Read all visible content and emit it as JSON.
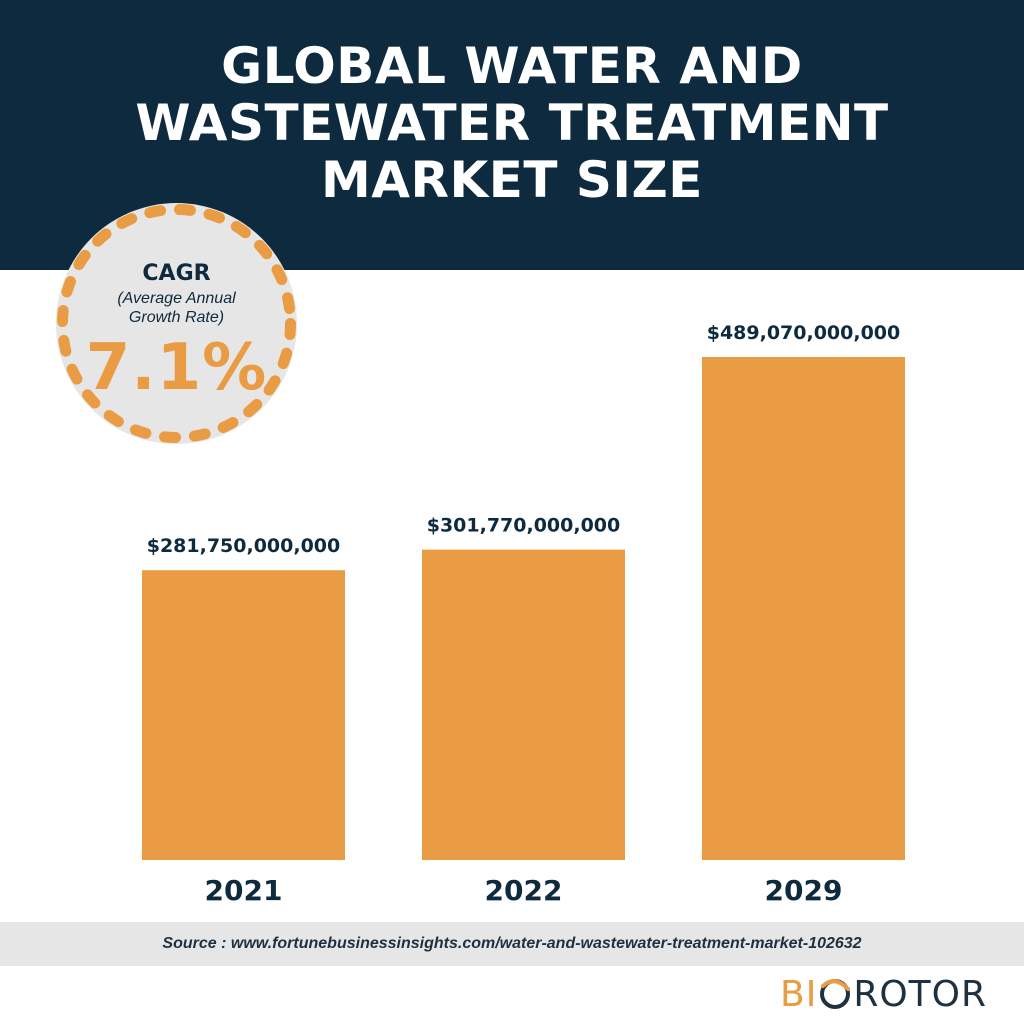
{
  "title": {
    "line1": "GLOBAL WATER AND",
    "line2": "WASTEWATER TREATMENT",
    "line3": "MARKET SIZE"
  },
  "cagr": {
    "label": "CAGR",
    "sub_line1": "(Average Annual",
    "sub_line2": "Growth Rate)",
    "value": "7.1%"
  },
  "chart_data": {
    "type": "bar",
    "title": "GLOBAL WATER AND WASTEWATER TREATMENT MARKET SIZE",
    "categories": [
      "2021",
      "2022",
      "2029"
    ],
    "values": [
      281750000000,
      301770000000,
      489070000000
    ],
    "data_labels": [
      "$281,750,000,000",
      "$301,770,000,000",
      "$489,070,000,000"
    ],
    "xlabel": "",
    "ylabel": "",
    "ylim": [
      0,
      489070000000
    ],
    "grid": false,
    "legend": "none"
  },
  "colors": {
    "navy": "#0e2a3e",
    "bar": "#e99c43",
    "circle": "#e6e6e6"
  },
  "source": "Source : www.fortunebusinessinsights.com/water-and-wastewater-treatment-market-102632",
  "logo": {
    "part1": "BI",
    "part2": "ROTOR",
    "icon": "o-ring-logo-icon"
  }
}
